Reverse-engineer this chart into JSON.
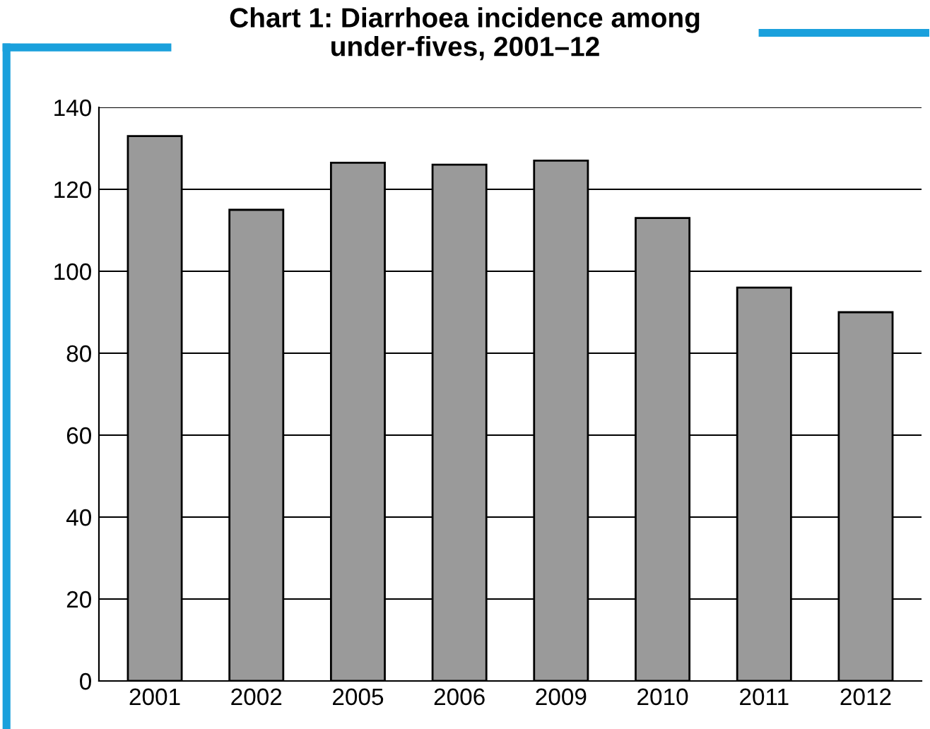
{
  "chart_data": {
    "type": "bar",
    "title": "Chart 1: Diarrhoea incidence among\nunder-fives, 2001–12",
    "categories": [
      "2001",
      "2002",
      "2005",
      "2006",
      "2009",
      "2010",
      "2011",
      "2012"
    ],
    "values": [
      133,
      115,
      126.5,
      126,
      127,
      113,
      96,
      90
    ],
    "color": "#9a9a9a",
    "ylim": [
      0,
      140
    ],
    "yticks": [
      0,
      20,
      40,
      60,
      80,
      100,
      120,
      140
    ],
    "grid": "y"
  }
}
